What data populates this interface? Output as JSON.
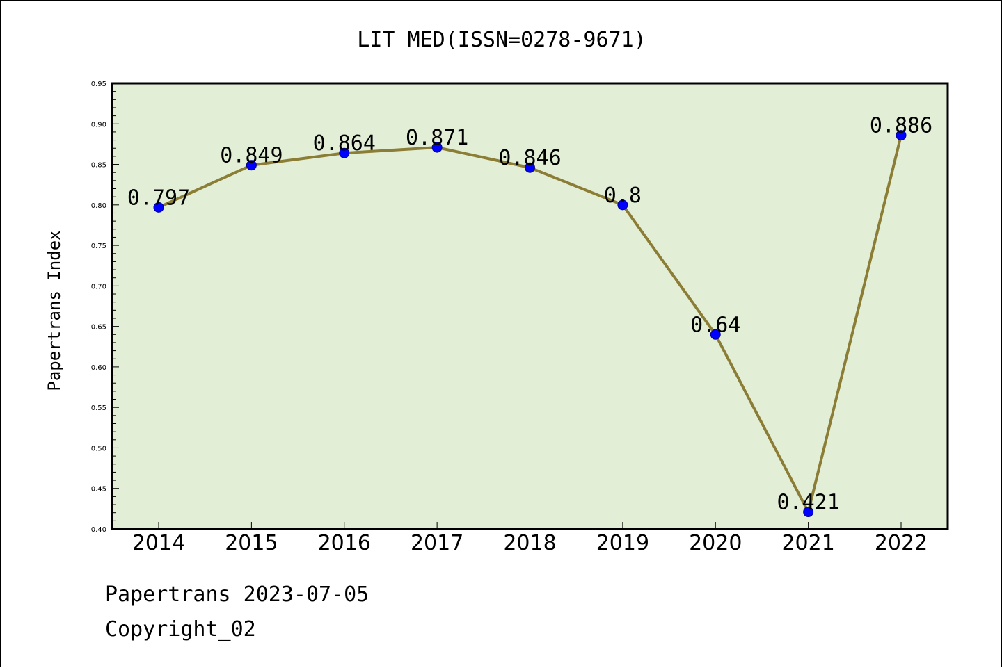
{
  "footer": {
    "line1": "Papertrans 2023-07-05",
    "line2": "Copyright_02"
  },
  "chart_data": {
    "type": "line",
    "title": "LIT MED(ISSN=0278-9671)",
    "xlabel": "",
    "ylabel": "Papertrans Index",
    "categories": [
      "2014",
      "2015",
      "2016",
      "2017",
      "2018",
      "2019",
      "2020",
      "2021",
      "2022"
    ],
    "values": [
      0.797,
      0.849,
      0.864,
      0.871,
      0.846,
      0.8,
      0.64,
      0.421,
      0.886
    ],
    "data_labels": [
      "0.797",
      "0.849",
      "0.864",
      "0.871",
      "0.846",
      "0.8",
      "0.64",
      "0.421",
      "0.886"
    ],
    "ylim": [
      0.4,
      0.95
    ],
    "yticks": [
      "0.40",
      "0.45",
      "0.50",
      "0.55",
      "0.60",
      "0.65",
      "0.70",
      "0.75",
      "0.80",
      "0.85",
      "0.90",
      "0.95"
    ],
    "grid": false,
    "colors": {
      "plot_background": "#e2efd6",
      "line": "#8b7d35",
      "marker": "#0000ff",
      "marker_edge": "#00008b"
    }
  }
}
